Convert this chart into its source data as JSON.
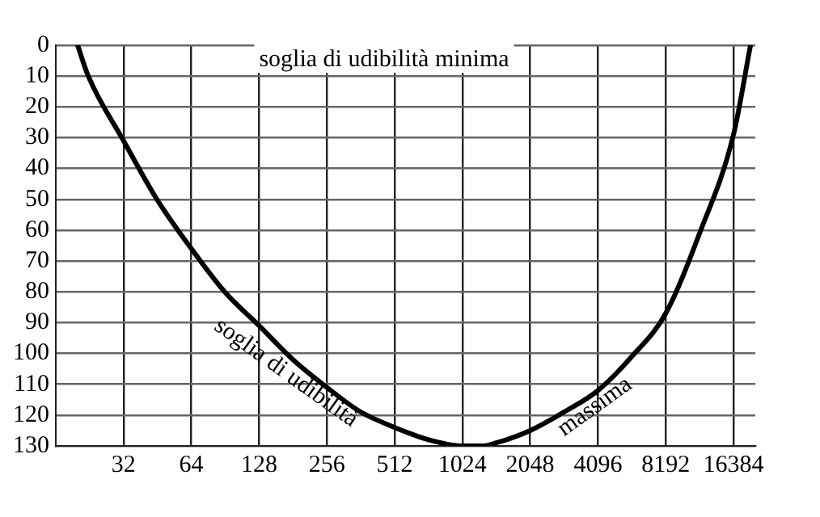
{
  "chart_data": {
    "type": "line",
    "x": [
      20,
      22.3,
      32,
      45,
      64,
      90,
      128,
      181,
      256,
      362,
      512,
      724,
      1024,
      1250,
      1448,
      2048,
      2896,
      4096,
      5793,
      8192,
      11585,
      16384,
      19500
    ],
    "series": [
      {
        "color": "#000000",
        "values": [
          0,
          10,
          31,
          50,
          66,
          80,
          91,
          102,
          111,
          119,
          124,
          128,
          130,
          130,
          129,
          125,
          119,
          112,
          101,
          87,
          61,
          29,
          0
        ]
      }
    ],
    "xlim": [
      16,
      20480
    ],
    "xticks": [
      32,
      64,
      128,
      256,
      512,
      1024,
      2048,
      4096,
      8192,
      16384
    ],
    "ylim": [
      130,
      0
    ],
    "yticks": [
      0,
      10,
      20,
      30,
      40,
      50,
      60,
      70,
      80,
      90,
      100,
      110,
      120,
      130
    ],
    "log": "x",
    "grid": true,
    "legend": false,
    "marker": "none",
    "line_style": "solid",
    "annotations": [
      "soglia di udibilità minima",
      "soglia di udibilità",
      "massima"
    ]
  }
}
